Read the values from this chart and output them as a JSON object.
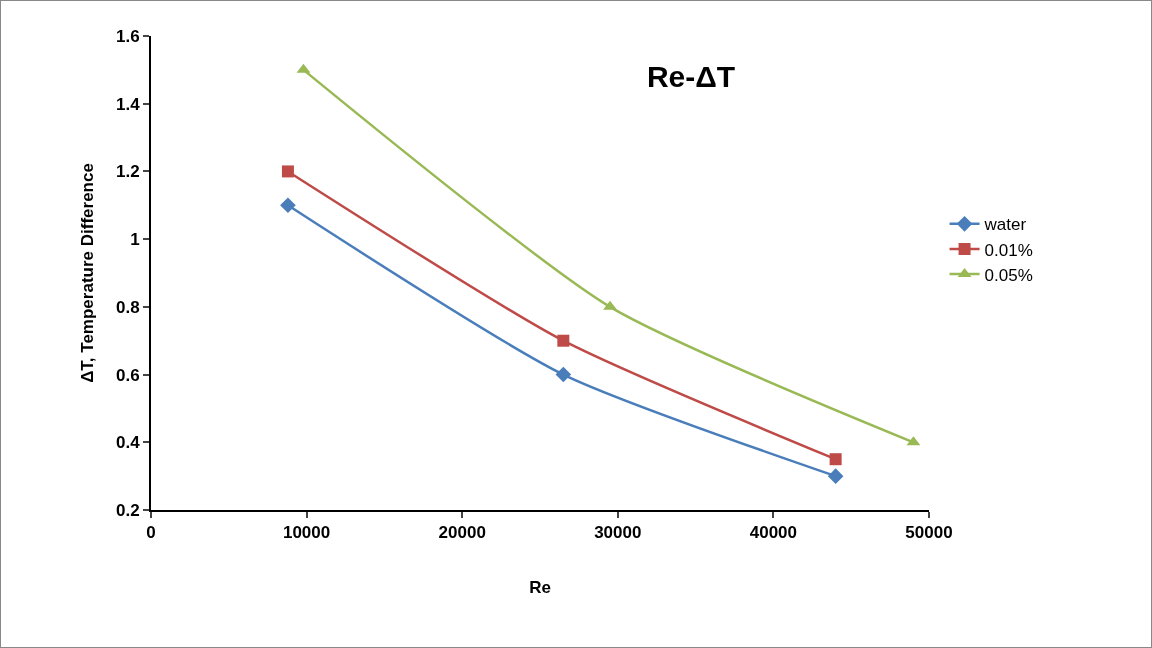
{
  "chart_data": {
    "type": "line",
    "title": "Re-ΔT",
    "xlabel": "Re",
    "ylabel": "ΔT, Temperature Difference",
    "xlim": [
      0,
      50000
    ],
    "xticks": [
      0,
      10000,
      20000,
      30000,
      40000,
      50000
    ],
    "ylim": [
      0.2,
      1.6
    ],
    "yticks": [
      0.2,
      0.4,
      0.6,
      0.8,
      1,
      1.2,
      1.4,
      1.6
    ],
    "grid": false,
    "legend": "right",
    "line_style": "solid",
    "series": [
      {
        "name": "water",
        "color": "#4a7ebb",
        "marker": "diamond",
        "x": [
          8800,
          26500,
          44000
        ],
        "values": [
          1.1,
          0.6,
          0.3
        ]
      },
      {
        "name": "0.01%",
        "color": "#be4b48",
        "marker": "square",
        "x": [
          8800,
          26500,
          44000
        ],
        "values": [
          1.2,
          0.7,
          0.35
        ]
      },
      {
        "name": "0.05%",
        "color": "#98b954",
        "marker": "triangle",
        "x": [
          9800,
          29500,
          49000
        ],
        "values": [
          1.5,
          0.8,
          0.4
        ]
      }
    ]
  }
}
